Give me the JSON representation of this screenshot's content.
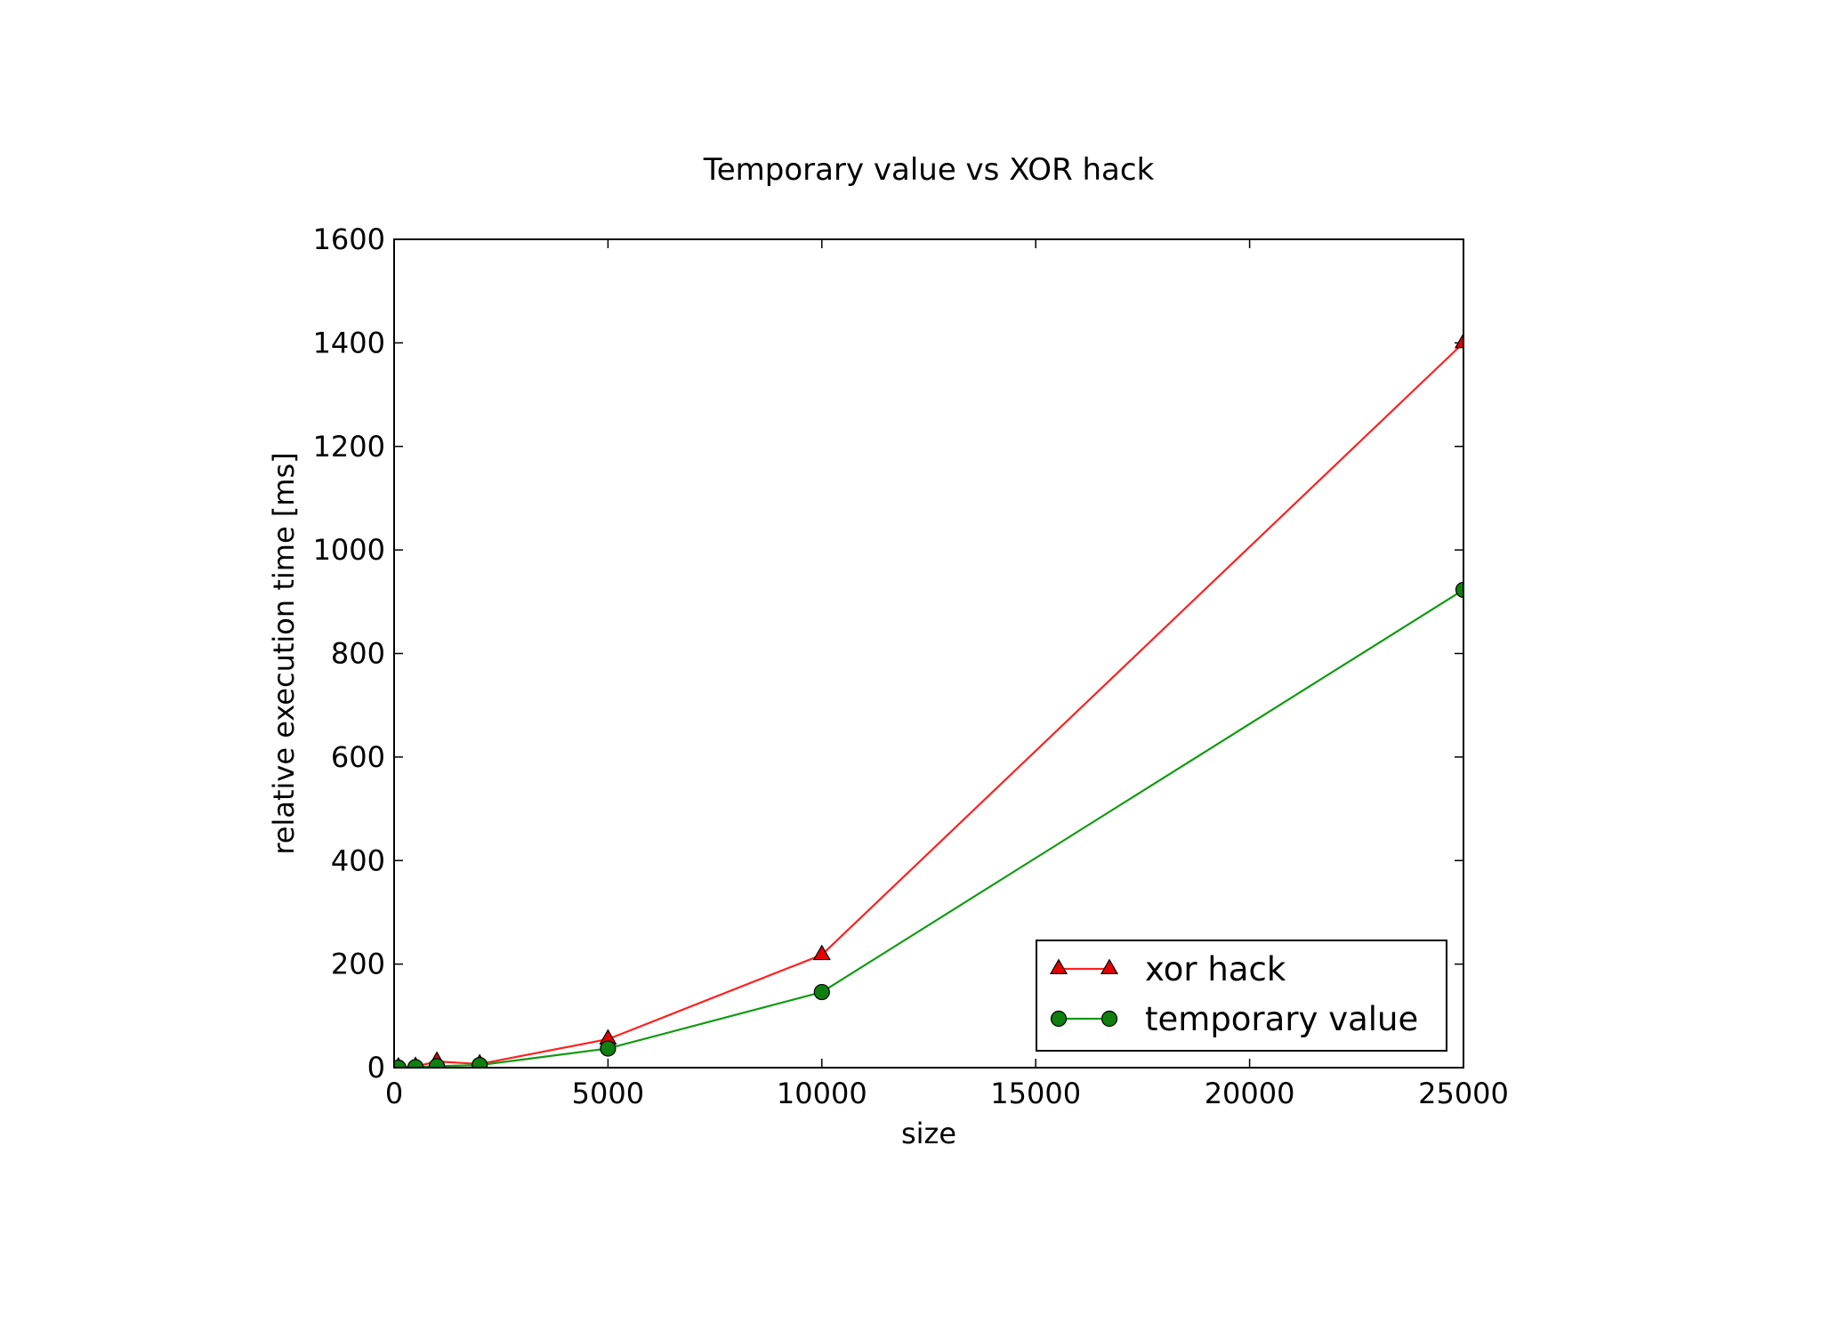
{
  "chart_data": {
    "type": "line",
    "title": "Temporary value vs XOR hack",
    "xlabel": "size",
    "ylabel": "relative execution time [ms]",
    "xlim": [
      0,
      25000
    ],
    "ylim": [
      0,
      1600
    ],
    "xticks": [
      "0",
      "5000",
      "10000",
      "15000",
      "20000",
      "25000"
    ],
    "yticks": [
      "0",
      "200",
      "400",
      "600",
      "800",
      "1000",
      "1200",
      "1400",
      "1600"
    ],
    "grid": false,
    "legend_position": "lower-right",
    "series": [
      {
        "name": "xor hack",
        "color": "#e41a1c",
        "marker": "triangle",
        "x": [
          100,
          500,
          1000,
          2000,
          5000,
          10000,
          25000
        ],
        "y": [
          1,
          2,
          12,
          7,
          55,
          218,
          1400
        ]
      },
      {
        "name": "temporary value",
        "color": "#138a13",
        "marker": "circle",
        "x": [
          100,
          500,
          1000,
          2000,
          5000,
          10000,
          25000
        ],
        "y": [
          0,
          1,
          3,
          5,
          37,
          146,
          923
        ]
      }
    ]
  },
  "colors": {
    "xor_hack_line": "#ff2020",
    "xor_hack_marker": "#e60000",
    "temporary_value_line": "#139a13",
    "temporary_value_marker": "#0f7f0f"
  }
}
